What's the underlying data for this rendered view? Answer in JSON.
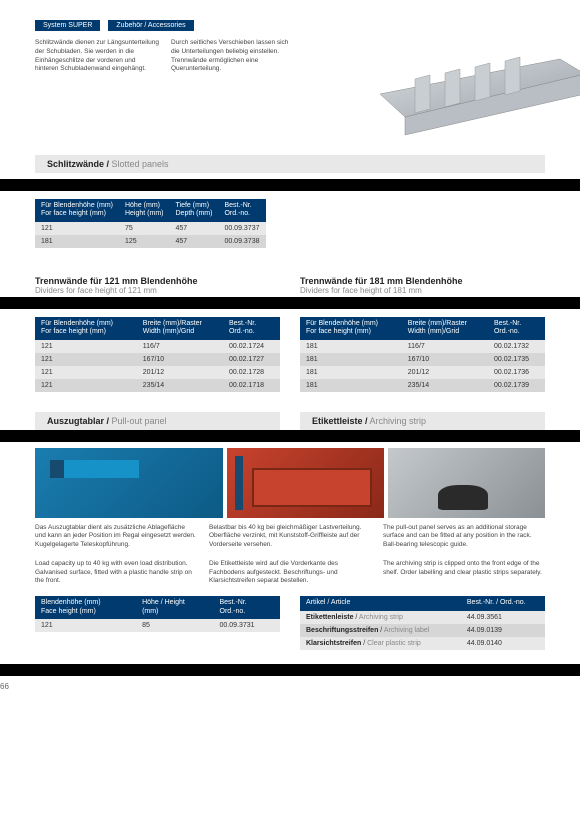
{
  "header": {
    "cat": "System SUPER",
    "sub": "Zubehör / Accessories"
  },
  "sections": {
    "slotted": {
      "title_de": "Schlitzwände /",
      "title_en": " Slotted panels"
    },
    "dividers121": {
      "title_de": "Trennwände für 121 mm Blendenhöhe",
      "title_en": "Dividers for face height of 121 mm"
    },
    "dividers181": {
      "title_de": "Trennwände für 181 mm Blendenhöhe",
      "title_en": "Dividers for face height of 181 mm"
    },
    "pullout": {
      "title_de": "Auszugtablar /",
      "title_en": " Pull-out panel"
    },
    "archiving": {
      "title_de": "Etikettleiste /",
      "title_en": " Archiving strip"
    }
  },
  "slotted_table": {
    "cols": [
      [
        "Für Blendenhöhe (mm)",
        "For face height (mm)"
      ],
      [
        "Höhe (mm)",
        "Height (mm)"
      ],
      [
        "Tiefe (mm)",
        "Depth (mm)"
      ],
      [
        "Best.-Nr.",
        "Ord.-no."
      ]
    ],
    "rows": [
      [
        "121",
        "75",
        "457",
        "00.09.3737"
      ],
      [
        "181",
        "125",
        "457",
        "00.09.3738"
      ]
    ]
  },
  "dividers121_table": {
    "cols": [
      [
        "Für Blendenhöhe (mm)",
        "For face height (mm)"
      ],
      [
        "Breite (mm)/Raster",
        "Width (mm)/Grid"
      ],
      [
        "Best.-Nr.",
        "Ord.-no."
      ]
    ],
    "rows": [
      [
        "121",
        "116/7",
        "00.02.1724"
      ],
      [
        "121",
        "167/10",
        "00.02.1727"
      ],
      [
        "121",
        "201/12",
        "00.02.1728"
      ],
      [
        "121",
        "235/14",
        "00.02.1718"
      ]
    ]
  },
  "dividers181_table": {
    "cols": [
      [
        "Für Blendenhöhe (mm)",
        "For face height (mm)"
      ],
      [
        "Breite (mm)/Raster",
        "Width (mm)/Grid"
      ],
      [
        "Best.-Nr.",
        "Ord.-no."
      ]
    ],
    "rows": [
      [
        "181",
        "116/7",
        "00.02.1732"
      ],
      [
        "181",
        "167/10",
        "00.02.1735"
      ],
      [
        "181",
        "201/12",
        "00.02.1736"
      ],
      [
        "181",
        "235/14",
        "00.02.1739"
      ]
    ]
  },
  "pullout_table": {
    "cols": [
      [
        "Blendenhöhe (mm)",
        "Face height (mm)"
      ],
      [
        "Höhe / Height",
        "(mm)"
      ],
      [
        "Best.-Nr.",
        "Ord.-no."
      ]
    ],
    "rows": [
      [
        "121",
        "85",
        "00.09.3731"
      ]
    ]
  },
  "archiving_table": {
    "cols": [
      [
        "Artikel / Article",
        ""
      ],
      [
        "Best.-Nr. / Ord.-no.",
        ""
      ]
    ],
    "rows": [
      [
        "Etikettenleiste / Archiving strip",
        "44.09.3561"
      ],
      [
        "Beschriftungsstreifen / Archiving label",
        "44.09.0139"
      ],
      [
        "Klarsichtstreifen / Clear plastic strip",
        "44.09.0140"
      ]
    ]
  },
  "bodytext": {
    "c1": "Schlitzwände dienen zur Längsunterteilung der Schubladen. Sie werden in die Einhängeschlitze der vorderen und hinteren Schubladenwand eingehängt.",
    "c2": "Durch seitliches Verschieben lassen sich die Unterteilungen beliebig einstellen. Trennwände ermöglichen eine Querunterteilung.",
    "c3": "Slotted panels are used to subdivide drawers lengthwise. They are hooked into the slots on the front and rear drawer walls.",
    "c4": "The sub-divisions can be freely adjusted by sliding sideways. Dividers allow transverse subdivision of the compartments."
  },
  "bodytext2": {
    "c1": "Das Auszugtablar dient als zusätzliche Ablagefläche und kann an jeder Position im Regal eingesetzt werden. Kugelgelagerte Teleskopführung.",
    "c2": "Belastbar bis 40 kg bei gleichmäßiger Lastverteilung. Oberfläche verzinkt, mit Kunststoff-Griffleiste auf der Vorderseite versehen.",
    "c3": "The pull-out panel serves as an additional storage surface and can be fitted at any position in the rack. Ball-bearing telescopic guide.",
    "c4": "Load capacity up to 40 kg with even load distribution. Galvanised surface, fitted with a plastic handle strip on the front.",
    "c5": "Die Etikettleiste wird auf die Vorderkante des Fachbodens aufgesteckt. Beschriftungs- und Klarsichtstreifen separat bestellen.",
    "c6": "The archiving strip is clipped onto the front edge of the shelf. Order labelling and clear plastic strips separately."
  },
  "page": "66",
  "colors": {
    "brand": "#003a6e",
    "grey": "#e8e8e8",
    "greyalt": "#d6d6d6"
  }
}
